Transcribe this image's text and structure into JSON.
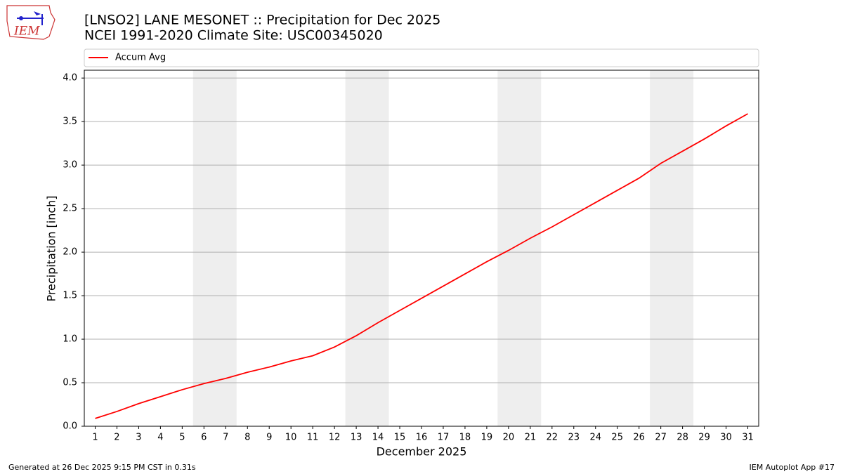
{
  "logo_text": "IEM",
  "footer_left": "Generated at 26 Dec 2025 9:15 PM CST in 0.31s",
  "footer_right": "IEM Autoplot App #17",
  "chart_data": {
    "type": "line",
    "title": "[LNSO2] LANE MESONET :: Precipitation for Dec 2025",
    "subtitle": "NCEI 1991-2020 Climate Site: USC00345020",
    "xlabel": "December 2025",
    "ylabel": "Precipitation [inch]",
    "x": [
      1,
      2,
      3,
      4,
      5,
      6,
      7,
      8,
      9,
      10,
      11,
      12,
      13,
      14,
      15,
      16,
      17,
      18,
      19,
      20,
      21,
      22,
      23,
      24,
      25,
      26,
      27,
      28,
      29,
      30,
      31
    ],
    "series": [
      {
        "name": "Accum Avg",
        "color": "#ff0000",
        "values": [
          0.09,
          0.17,
          0.26,
          0.34,
          0.42,
          0.49,
          0.55,
          0.62,
          0.68,
          0.75,
          0.81,
          0.91,
          1.04,
          1.19,
          1.33,
          1.47,
          1.61,
          1.75,
          1.89,
          2.02,
          2.16,
          2.29,
          2.43,
          2.57,
          2.71,
          2.85,
          3.02,
          3.16,
          3.3,
          3.45,
          3.59
        ]
      }
    ],
    "shaded_spans": [
      [
        5.5,
        7.5
      ],
      [
        12.5,
        14.5
      ],
      [
        19.5,
        21.5
      ],
      [
        26.5,
        28.5
      ]
    ],
    "shade_color": "#eeeeee",
    "xlim": [
      0.5,
      31.5
    ],
    "xticks": [
      1,
      2,
      3,
      4,
      5,
      6,
      7,
      8,
      9,
      10,
      11,
      12,
      13,
      14,
      15,
      16,
      17,
      18,
      19,
      20,
      21,
      22,
      23,
      24,
      25,
      26,
      27,
      28,
      29,
      30,
      31
    ],
    "ylim": [
      0,
      4.09
    ],
    "yticks": [
      {
        "value": 0,
        "label": "0.0"
      },
      {
        "value": 0.5,
        "label": "0.5"
      },
      {
        "value": 1,
        "label": "1.0"
      },
      {
        "value": 1.5,
        "label": "1.5"
      },
      {
        "value": 2,
        "label": "2.0"
      },
      {
        "value": 2.5,
        "label": "2.5"
      },
      {
        "value": 3,
        "label": "3.0"
      },
      {
        "value": 3.5,
        "label": "3.5"
      },
      {
        "value": 4,
        "label": "4.0"
      }
    ],
    "grid": true,
    "legend": "top"
  }
}
